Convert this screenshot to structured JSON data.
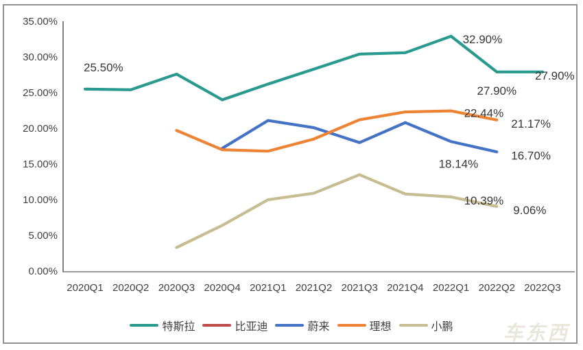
{
  "chart_data": {
    "type": "line",
    "title": "",
    "xlabel": "",
    "ylabel": "",
    "grid": false,
    "legend_position": "bottom",
    "ylim": [
      0,
      35
    ],
    "ytick_step": 5,
    "ytick_labels": [
      "0.00%",
      "5.00%",
      "10.00%",
      "15.00%",
      "20.00%",
      "25.00%",
      "30.00%",
      "35.00%"
    ],
    "categories": [
      "2020Q1",
      "2020Q2",
      "2020Q3",
      "2020Q4",
      "2021Q1",
      "2021Q2",
      "2021Q3",
      "2021Q4",
      "2022Q1",
      "2022Q2",
      "2022Q3"
    ],
    "series": [
      {
        "name": "特斯拉",
        "color": "#2A9A8F",
        "values": [
          25.5,
          25.4,
          27.6,
          24.0,
          26.2,
          28.3,
          30.4,
          30.6,
          32.9,
          27.9,
          27.9
        ]
      },
      {
        "name": "比亚迪",
        "color": "#BE4B48",
        "values": [
          null,
          null,
          null,
          null,
          null,
          null,
          null,
          null,
          null,
          null,
          null
        ]
      },
      {
        "name": "蔚来",
        "color": "#4472C4",
        "values": [
          null,
          null,
          null,
          17.2,
          21.1,
          20.1,
          18.0,
          20.8,
          18.14,
          16.7,
          null
        ]
      },
      {
        "name": "理想",
        "color": "#ED8335",
        "values": [
          null,
          null,
          19.7,
          17.0,
          16.8,
          18.5,
          21.2,
          22.3,
          22.44,
          21.17,
          null
        ]
      },
      {
        "name": "小鹏",
        "color": "#C6BD92",
        "values": [
          null,
          null,
          3.3,
          6.4,
          10.0,
          10.9,
          13.5,
          10.8,
          10.39,
          9.06,
          null
        ]
      }
    ],
    "annotations": [
      {
        "series": "特斯拉",
        "category": "2020Q1",
        "text": "25.50%"
      },
      {
        "series": "特斯拉",
        "category": "2022Q1",
        "text": "32.90%"
      },
      {
        "series": "特斯拉",
        "category": "2022Q2",
        "text": "27.90%"
      },
      {
        "series": "特斯拉",
        "category": "2022Q3",
        "text": "27.90%"
      },
      {
        "series": "理想",
        "category": "2022Q1",
        "text": "22.44%"
      },
      {
        "series": "理想",
        "category": "2022Q2",
        "text": "21.17%"
      },
      {
        "series": "蔚来",
        "category": "2022Q1",
        "text": "18.14%"
      },
      {
        "series": "蔚来",
        "category": "2022Q2",
        "text": "16.70%"
      },
      {
        "series": "小鹏",
        "category": "2022Q1",
        "text": "10.39%"
      },
      {
        "series": "小鹏",
        "category": "2022Q2",
        "text": "9.06%"
      }
    ]
  },
  "watermark": {
    "text": "车东西"
  },
  "colors": {
    "background": "#ffffff",
    "frame_border": "#919191",
    "axis_line": "#7f7f7f",
    "axis_text": "#404040",
    "data_label_text": "#363636"
  }
}
